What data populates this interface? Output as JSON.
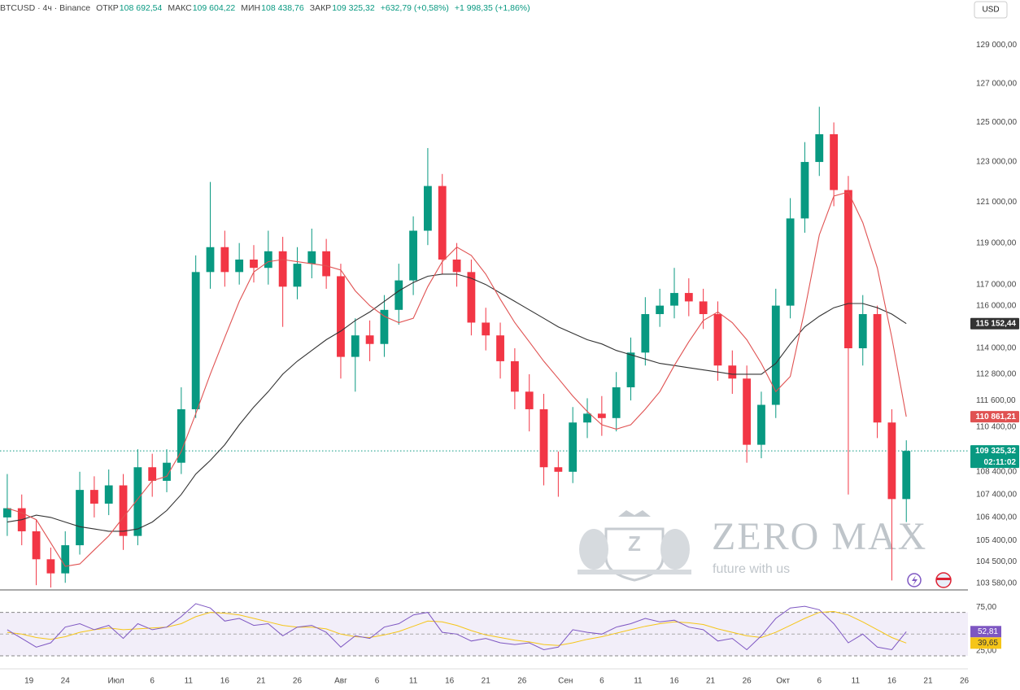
{
  "chart_data": {
    "type": "candlestick",
    "title": "BTCUSD · 4ч · Binance",
    "header": [
      {
        "label": "ОТКР",
        "value": "108 692,54"
      },
      {
        "label": "МАКС",
        "value": "109 604,22"
      },
      {
        "label": "МИН",
        "value": "108 438,76"
      },
      {
        "label": "ЗАКР",
        "value": "109 325,32"
      }
    ],
    "changes": [
      "+632,79 (+0,58%)",
      "+1 998,35 (+1,86%)"
    ],
    "currency": "USD",
    "up_color": "#089981",
    "down_color": "#f23645",
    "log_scale": true,
    "xlim": [
      15,
      148.5
    ],
    "xticks": [
      19,
      24,
      {
        "value": 31,
        "label": "Июл"
      },
      {
        "value": 36,
        "label": "6"
      },
      {
        "value": 41,
        "label": "11"
      },
      {
        "value": 46,
        "label": "16"
      },
      {
        "value": 51,
        "label": "21"
      },
      {
        "value": 56,
        "label": "26"
      },
      {
        "value": 62,
        "label": "Авг"
      },
      {
        "value": 67,
        "label": "6"
      },
      {
        "value": 72,
        "label": "11"
      },
      {
        "value": 77,
        "label": "16"
      },
      {
        "value": 82,
        "label": "21"
      },
      {
        "value": 87,
        "label": "26"
      },
      {
        "value": 93,
        "label": "Сен"
      },
      {
        "value": 98,
        "label": "6"
      },
      {
        "value": 103,
        "label": "11"
      },
      {
        "value": 108,
        "label": "16"
      },
      {
        "value": 113,
        "label": "21"
      },
      {
        "value": 118,
        "label": "26"
      },
      {
        "value": 123,
        "label": "Окт"
      },
      {
        "value": 128,
        "label": "6"
      },
      {
        "value": 133,
        "label": "11"
      },
      {
        "value": 138,
        "label": "16"
      },
      {
        "value": 143,
        "label": "21"
      },
      {
        "value": 148,
        "label": "26"
      }
    ],
    "ylim": [
      103300,
      131400
    ],
    "yticks": [
      {
        "value": 129000,
        "label": "129 000,00"
      },
      {
        "value": 127000,
        "label": "127 000,00"
      },
      {
        "value": 125000,
        "label": "125 000,00"
      },
      {
        "value": 123000,
        "label": "123 000,00"
      },
      {
        "value": 121000,
        "label": "121 000,00"
      },
      {
        "value": 119000,
        "label": "119 000,00"
      },
      {
        "value": 117000,
        "label": "117 000,00"
      },
      {
        "value": 116000,
        "label": "116 000,00"
      },
      {
        "value": 114000,
        "label": "114 000,00"
      },
      {
        "value": 112800,
        "label": "112 800,00"
      },
      {
        "value": 111600,
        "label": "111 600,00"
      },
      {
        "value": 110400,
        "label": "110 400,00"
      },
      {
        "value": 108400,
        "label": "108 400,00"
      },
      {
        "value": 107400,
        "label": "107 400,00"
      },
      {
        "value": 106400,
        "label": "106 400,00"
      },
      {
        "value": 105400,
        "label": "105 400,00"
      },
      {
        "value": 104500,
        "label": "104 500,00"
      },
      {
        "value": 103580,
        "label": "103 580,00"
      }
    ],
    "x": [
      16,
      18,
      20,
      22,
      24,
      26,
      28,
      30,
      32,
      34,
      36,
      38,
      40,
      42,
      44,
      46,
      48,
      50,
      52,
      54,
      56,
      58,
      60,
      62,
      64,
      66,
      68,
      70,
      72,
      74,
      76,
      78,
      80,
      82,
      84,
      86,
      88,
      90,
      92,
      94,
      96,
      98,
      100,
      102,
      104,
      106,
      108,
      110,
      112,
      114,
      116,
      118,
      120,
      122,
      124,
      126,
      128,
      130,
      132,
      134,
      136,
      138,
      140
    ],
    "open": [
      106400,
      106800,
      105800,
      104600,
      104000,
      105200,
      107600,
      107000,
      107800,
      105600,
      108600,
      108000,
      108800,
      111200,
      117600,
      118800,
      117600,
      118200,
      117800,
      118600,
      116900,
      118000,
      118600,
      117400,
      113600,
      114600,
      114200,
      115800,
      117200,
      119600,
      121800,
      118200,
      117600,
      115200,
      114600,
      113400,
      112000,
      111200,
      108600,
      108400,
      110600,
      111000,
      110800,
      112200,
      113800,
      115600,
      116000,
      116600,
      116200,
      115600,
      113200,
      112600,
      109600,
      111400,
      116000,
      120200,
      123000,
      124400,
      121600,
      114000,
      115600,
      110600,
      107200
    ],
    "high": [
      108300,
      107400,
      106300,
      105100,
      105800,
      108400,
      108200,
      108500,
      108300,
      109400,
      109200,
      109400,
      112200,
      118400,
      122000,
      119600,
      119000,
      118900,
      119600,
      119300,
      118800,
      119700,
      119200,
      118000,
      115400,
      115300,
      116500,
      118000,
      120300,
      123700,
      122400,
      119000,
      118200,
      115900,
      115200,
      114000,
      112800,
      111900,
      109300,
      111300,
      111700,
      111800,
      112900,
      114500,
      116400,
      116800,
      117800,
      117300,
      116800,
      116200,
      113900,
      113200,
      112000,
      116800,
      121200,
      124000,
      125800,
      125000,
      122300,
      116500,
      116000,
      111200,
      109800
    ],
    "low": [
      105600,
      105200,
      103500,
      103400,
      103600,
      104800,
      106400,
      106500,
      105000,
      105200,
      107300,
      107500,
      108300,
      110800,
      116800,
      116900,
      117000,
      117100,
      117000,
      115000,
      116300,
      117300,
      116800,
      112600,
      112000,
      113400,
      113600,
      115100,
      116500,
      118900,
      117500,
      116900,
      114600,
      113900,
      112600,
      111200,
      110200,
      107800,
      107300,
      107900,
      109900,
      110000,
      110200,
      111600,
      113200,
      115000,
      115400,
      115500,
      114900,
      112500,
      111900,
      108800,
      109000,
      110800,
      115400,
      119500,
      122300,
      120800,
      107400,
      113200,
      109900,
      103700,
      106200
    ],
    "close": [
      106800,
      105800,
      104600,
      104000,
      105200,
      107600,
      107000,
      107800,
      105600,
      108600,
      108000,
      108800,
      111200,
      117600,
      118800,
      117600,
      118200,
      117800,
      118600,
      116900,
      118000,
      118600,
      117400,
      113600,
      114600,
      114200,
      115800,
      117200,
      119600,
      121800,
      118200,
      117600,
      115200,
      114600,
      113400,
      112000,
      111200,
      108600,
      108400,
      110600,
      111000,
      110800,
      112200,
      113800,
      115600,
      116000,
      116600,
      116200,
      115600,
      113200,
      112600,
      109600,
      111400,
      116000,
      120200,
      123000,
      124400,
      121600,
      114000,
      115600,
      110600,
      107200,
      109325.32
    ],
    "price_line": {
      "value": 109325.32,
      "label": "109 325,32",
      "countdown": "02:11:02",
      "color": "#089981"
    },
    "ma_lines": [
      {
        "color": "#333333",
        "last_label": "115 152,44",
        "values": [
          106200,
          106300,
          106500,
          106400,
          106200,
          106000,
          105900,
          105800,
          105800,
          105900,
          106200,
          106700,
          107400,
          108300,
          108900,
          109600,
          110500,
          111300,
          112000,
          112800,
          113400,
          113900,
          114400,
          114800,
          115300,
          115700,
          116200,
          116700,
          117100,
          117400,
          117500,
          117500,
          117300,
          117000,
          116600,
          116200,
          115800,
          115400,
          115000,
          114700,
          114400,
          114200,
          113900,
          113700,
          113500,
          113300,
          113200,
          113100,
          113000,
          112900,
          112800,
          112800,
          112800,
          113300,
          114200,
          115000,
          115500,
          115900,
          116100,
          116100,
          115900,
          115600,
          115152.44
        ]
      },
      {
        "color": "#e05252",
        "last_label": "110 861,21",
        "values": [
          106800,
          106600,
          106300,
          105300,
          104300,
          104400,
          105000,
          105600,
          106400,
          107200,
          108000,
          108200,
          109300,
          111000,
          112800,
          114500,
          116200,
          117600,
          118100,
          118200,
          118100,
          118000,
          117900,
          117700,
          116700,
          116000,
          115500,
          115200,
          115400,
          116900,
          118100,
          118800,
          118400,
          117500,
          116300,
          115200,
          114300,
          113400,
          112600,
          111800,
          111100,
          110500,
          110300,
          110500,
          111200,
          112000,
          113200,
          114300,
          115300,
          115700,
          115200,
          114400,
          113300,
          112000,
          112700,
          115800,
          119400,
          121300,
          121500,
          120000,
          117800,
          114500,
          110861.21
        ]
      }
    ],
    "rsi": {
      "ylim": [
        10,
        98
      ],
      "yticks": [
        {
          "value": 75,
          "label": "75,00"
        },
        {
          "value": 25,
          "label": "25,00"
        }
      ],
      "band_color": "#7e57c2",
      "series": [
        {
          "color": "#7e57c2",
          "text_color": "#ffffff",
          "last_label": "52,81",
          "values": [
            55,
            45,
            35,
            40,
            58,
            62,
            55,
            60,
            45,
            62,
            55,
            58,
            70,
            85,
            80,
            65,
            68,
            60,
            62,
            48,
            58,
            60,
            52,
            35,
            48,
            45,
            58,
            62,
            72,
            75,
            52,
            50,
            42,
            45,
            40,
            38,
            40,
            32,
            35,
            55,
            52,
            50,
            58,
            62,
            68,
            64,
            66,
            58,
            55,
            42,
            45,
            32,
            48,
            68,
            80,
            82,
            78,
            62,
            40,
            50,
            35,
            32,
            52.81
          ]
        },
        {
          "color": "#f5c518",
          "text_color": "#333333",
          "last_label": "39,65",
          "values": [
            52,
            50,
            46,
            44,
            47,
            52,
            55,
            57,
            55,
            56,
            57,
            58,
            62,
            70,
            75,
            74,
            72,
            68,
            64,
            60,
            58,
            58,
            56,
            50,
            47,
            46,
            49,
            53,
            59,
            65,
            64,
            60,
            54,
            49,
            46,
            43,
            41,
            38,
            37,
            40,
            44,
            47,
            51,
            55,
            59,
            62,
            64,
            63,
            61,
            56,
            52,
            48,
            46,
            52,
            60,
            68,
            75,
            76,
            72,
            64,
            55,
            46,
            39.65
          ]
        }
      ]
    }
  },
  "watermark": {
    "title": "ZERO MAX",
    "tagline": "future with us"
  }
}
